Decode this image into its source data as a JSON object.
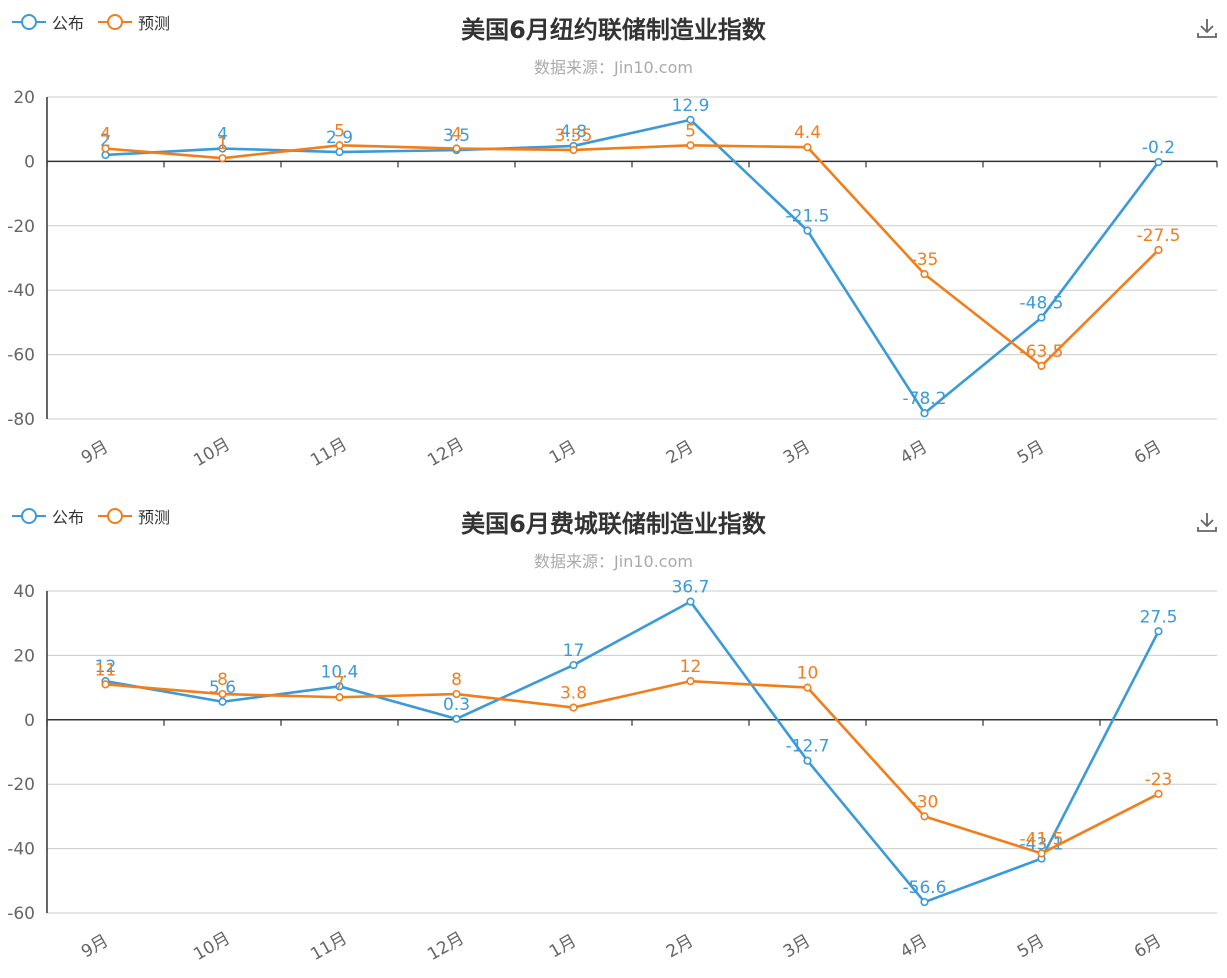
{
  "colors": {
    "published": "#3b9ad9",
    "forecast": "#f27e1b",
    "axis": "#333333",
    "grid": "#cccccc",
    "tick": "#666666"
  },
  "toolbar": {
    "download_icon": "download-icon"
  },
  "chart_data": [
    {
      "type": "line",
      "title": "美国6月纽约联储制造业指数",
      "subtitle": "数据来源：Jin10.com",
      "legend": [
        "公布",
        "预测"
      ],
      "legend_position": "top-left",
      "categories": [
        "9月",
        "10月",
        "11月",
        "12月",
        "1月",
        "2月",
        "3月",
        "4月",
        "5月",
        "6月"
      ],
      "ylim": [
        -80,
        20
      ],
      "yticks": [
        20,
        0,
        -20,
        -40,
        -60,
        -80
      ],
      "series": [
        {
          "name": "公布",
          "values": [
            2,
            4,
            2.9,
            3.5,
            4.8,
            12.9,
            -21.5,
            -78.2,
            -48.5,
            -0.2
          ],
          "labels": [
            "2",
            "4",
            "2.9",
            "3.5",
            "4.8",
            "12.9",
            "-21.5",
            "-78.2",
            "-48.5",
            "-0.2"
          ]
        },
        {
          "name": "预测",
          "values": [
            4,
            1,
            5,
            4,
            3.55,
            5,
            4.4,
            -35,
            -63.5,
            -27.5
          ],
          "labels": [
            "4",
            "1",
            "5",
            "4",
            "3.55",
            "5",
            "4.4",
            "-35",
            "-63.5",
            "-27.5"
          ]
        }
      ]
    },
    {
      "type": "line",
      "title": "美国6月费城联储制造业指数",
      "subtitle": "数据来源：Jin10.com",
      "legend": [
        "公布",
        "预测"
      ],
      "legend_position": "top-left",
      "categories": [
        "9月",
        "10月",
        "11月",
        "12月",
        "1月",
        "2月",
        "3月",
        "4月",
        "5月",
        "6月"
      ],
      "ylim": [
        -60,
        40
      ],
      "yticks": [
        40,
        20,
        0,
        -20,
        -40,
        -60
      ],
      "series": [
        {
          "name": "公布",
          "values": [
            12,
            5.6,
            10.4,
            0.3,
            17,
            36.7,
            -12.7,
            -56.6,
            -43.1,
            27.5
          ],
          "labels": [
            "12",
            "5.6",
            "10.4",
            "0.3",
            "17",
            "36.7",
            "-12.7",
            "-56.6",
            "-43.1",
            "27.5"
          ]
        },
        {
          "name": "预测",
          "values": [
            11,
            8,
            7,
            8,
            3.8,
            12,
            10,
            -30,
            -41.5,
            -23
          ],
          "labels": [
            "11",
            "8",
            "7",
            "8",
            "3.8",
            "12",
            "10",
            "-30",
            "-41.5",
            "-23"
          ]
        }
      ]
    }
  ]
}
